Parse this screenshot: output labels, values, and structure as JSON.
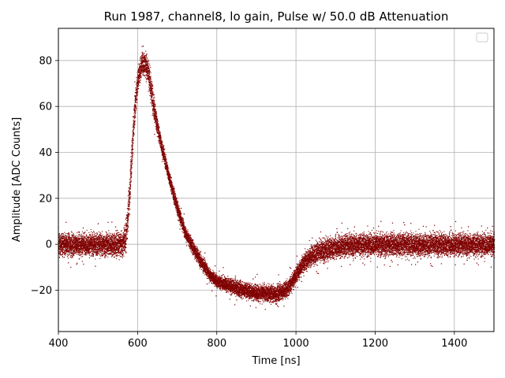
{
  "chart_data": {
    "type": "scatter",
    "title": "Run 1987, channel8, lo gain, Pulse w/ 50.0 dB Attenuation",
    "xlabel": "Time [ns]",
    "ylabel": "Amplitude [ADC Counts]",
    "xlim": [
      400,
      1500
    ],
    "ylim": [
      -38,
      94
    ],
    "x_ticks": [
      400,
      600,
      800,
      1000,
      1200,
      1400
    ],
    "y_ticks": [
      -20,
      0,
      20,
      40,
      60,
      80
    ],
    "y_tick_labels": [
      "−20",
      "0",
      "20",
      "40",
      "60",
      "80"
    ],
    "grid": true,
    "legend": "top-right",
    "marker_color": "#800000",
    "series": [
      {
        "name": "",
        "x": [
          400,
          560,
          570,
          580,
          590,
          600,
          610,
          620,
          630,
          640,
          650,
          660,
          680,
          700,
          720,
          740,
          760,
          780,
          800,
          850,
          900,
          950,
          980,
          1000,
          1020,
          1040,
          1060,
          1080,
          1100,
          1150,
          1200,
          1300,
          1400,
          1500
        ],
        "y_min": [
          -7,
          -7,
          -6,
          14,
          45,
          64,
          72,
          71,
          62,
          52,
          45,
          38,
          24,
          11,
          1,
          -6,
          -12,
          -17,
          -20,
          -24,
          -26,
          -27,
          -24,
          -18,
          -13,
          -11,
          -10,
          -9,
          -8,
          -7,
          -7,
          -7,
          -7,
          -7
        ],
        "y_max": [
          7,
          7,
          13,
          35,
          65,
          80,
          86,
          86,
          80,
          68,
          56,
          48,
          33,
          20,
          9,
          3,
          -3,
          -9,
          -12,
          -14,
          -16,
          -16,
          -14,
          -8,
          -2,
          2,
          4,
          5,
          6,
          7,
          7,
          7,
          7,
          7
        ]
      }
    ]
  }
}
